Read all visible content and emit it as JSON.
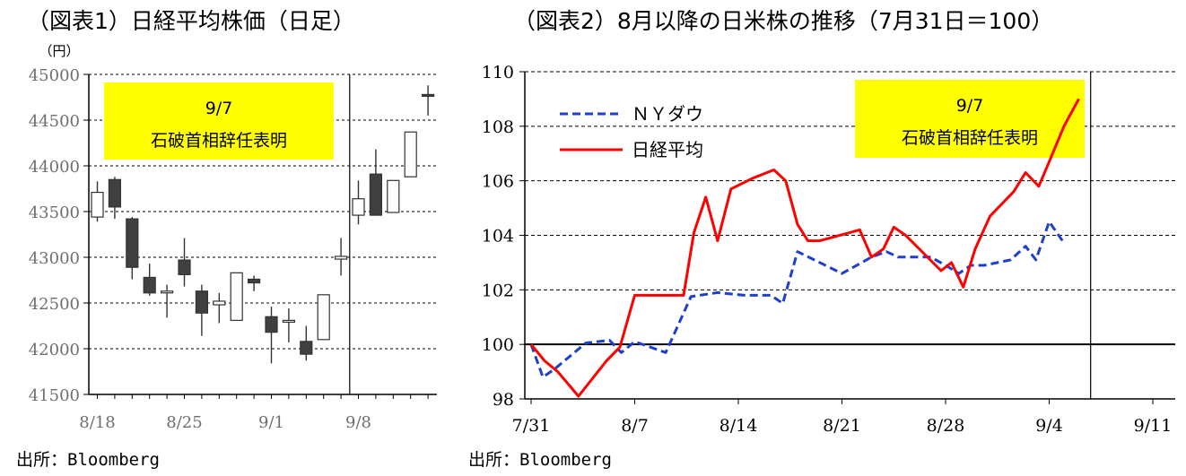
{
  "titles": {
    "chart1": "（図表1）日経平均株価（日足）",
    "chart2": "（図表2）8月以降の日米株の推移（7月31日＝100）"
  },
  "sources": {
    "chart1": "出所：Bloomberg",
    "chart2": "出所：Bloomberg"
  },
  "chart_data": [
    {
      "type": "candlestick",
      "title": "（図表1）日経平均株価（日足）",
      "unit_label": "（円）",
      "ylim": [
        41500,
        45000
      ],
      "yticks": [
        41500,
        42000,
        42500,
        43000,
        43500,
        44000,
        44500,
        45000
      ],
      "xtick_labels": [
        "8/18",
        "8/25",
        "9/1",
        "9/8"
      ],
      "xtick_index": [
        0,
        5,
        10,
        15
      ],
      "grid": true,
      "annotation": {
        "line1": "9/7",
        "line2": "石破首相辞任表明",
        "color": "#ffff00",
        "marker_after_index": 14
      },
      "candles": [
        {
          "date": "8/18",
          "open": 43440,
          "close": 43710,
          "high": 43830,
          "low": 43390
        },
        {
          "date": "8/19",
          "open": 43850,
          "close": 43550,
          "high": 43880,
          "low": 43420
        },
        {
          "date": "8/20",
          "open": 43420,
          "close": 42890,
          "high": 43440,
          "low": 42760
        },
        {
          "date": "8/21",
          "open": 42780,
          "close": 42610,
          "high": 42930,
          "low": 42580
        },
        {
          "date": "8/22",
          "open": 42620,
          "close": 42630,
          "high": 42700,
          "low": 42340
        },
        {
          "date": "8/25",
          "open": 42970,
          "close": 42810,
          "high": 43210,
          "low": 42680
        },
        {
          "date": "8/26",
          "open": 42630,
          "close": 42390,
          "high": 42700,
          "low": 42140
        },
        {
          "date": "8/27",
          "open": 42480,
          "close": 42520,
          "high": 42610,
          "low": 42280
        },
        {
          "date": "8/28",
          "open": 42310,
          "close": 42830,
          "high": 42830,
          "low": 42310
        },
        {
          "date": "8/29",
          "open": 42760,
          "close": 42720,
          "high": 42800,
          "low": 42630
        },
        {
          "date": "9/1",
          "open": 42350,
          "close": 42180,
          "high": 42460,
          "low": 41840
        },
        {
          "date": "9/2",
          "open": 42300,
          "close": 42310,
          "high": 42440,
          "low": 42070
        },
        {
          "date": "9/3",
          "open": 42080,
          "close": 41940,
          "high": 42250,
          "low": 41870
        },
        {
          "date": "9/4",
          "open": 42100,
          "close": 42590,
          "high": 42590,
          "low": 42100
        },
        {
          "date": "9/5",
          "open": 42980,
          "close": 43010,
          "high": 43210,
          "low": 42800
        },
        {
          "date": "9/8",
          "open": 43460,
          "close": 43640,
          "high": 43840,
          "low": 43360
        },
        {
          "date": "9/9",
          "open": 43910,
          "close": 43460,
          "high": 44180,
          "low": 43460
        },
        {
          "date": "9/10",
          "open": 43490,
          "close": 43840,
          "high": 43840,
          "low": 43490
        },
        {
          "date": "9/11",
          "open": 43880,
          "close": 44370,
          "high": 44370,
          "low": 43880
        },
        {
          "date": "9/12",
          "open": 44780,
          "close": 44770,
          "high": 44880,
          "low": 44550
        }
      ]
    },
    {
      "type": "line",
      "title": "（図表2）8月以降の日米株の推移（7月31日＝100）",
      "ylim": [
        98,
        110
      ],
      "yticks": [
        98,
        100,
        102,
        104,
        106,
        108,
        110
      ],
      "xlim": [
        0,
        62
      ],
      "xtick_labels": [
        "7/31",
        "8/7",
        "8/14",
        "8/21",
        "8/28",
        "9/4",
        "9/11"
      ],
      "xtick_values": [
        0,
        7,
        14,
        21,
        28,
        35,
        42
      ],
      "grid": true,
      "baseline": 100,
      "annotation": {
        "line1": "9/7",
        "line2": "石破首相辞任表明",
        "color": "#ffff00",
        "marker_x": 37.8
      },
      "series": [
        {
          "name": "ＮＹダウ",
          "color": "#1f3fd0",
          "dash": true,
          "points": [
            [
              0,
              100
            ],
            [
              0.8,
              98.8
            ],
            [
              1.6,
              99.1
            ],
            [
              3.7,
              100.05
            ],
            [
              5.3,
              100.15
            ],
            [
              6.1,
              99.7
            ],
            [
              7.0,
              100.1
            ],
            [
              9.1,
              99.7
            ],
            [
              10.8,
              101.75
            ],
            [
              12.6,
              101.9
            ],
            [
              14.4,
              101.8
            ],
            [
              16.2,
              101.8
            ],
            [
              17.0,
              101.5
            ],
            [
              18.0,
              103.4
            ],
            [
              21.0,
              102.6
            ],
            [
              23.0,
              103.2
            ],
            [
              24.0,
              103.4
            ],
            [
              24.8,
              103.2
            ],
            [
              27.0,
              103.2
            ],
            [
              28.0,
              102.9
            ],
            [
              28.9,
              102.6
            ],
            [
              29.7,
              102.9
            ],
            [
              30.6,
              102.9
            ],
            [
              32.4,
              103.1
            ],
            [
              33.4,
              103.6
            ],
            [
              34.1,
              103.1
            ],
            [
              35.0,
              104.5
            ],
            [
              35.9,
              103.8
            ]
          ]
        },
        {
          "name": "日経平均",
          "color": "#ff0000",
          "dash": false,
          "points": [
            [
              0,
              100
            ],
            [
              0.9,
              99.4
            ],
            [
              1.8,
              99.0
            ],
            [
              3.2,
              98.1
            ],
            [
              5.1,
              99.4
            ],
            [
              6.0,
              99.9
            ],
            [
              7.0,
              101.8
            ],
            [
              9.0,
              101.8
            ],
            [
              10.3,
              101.8
            ],
            [
              11.0,
              104.1
            ],
            [
              11.8,
              105.4
            ],
            [
              12.6,
              103.8
            ],
            [
              13.5,
              105.7
            ],
            [
              15.0,
              106.1
            ],
            [
              16.4,
              106.4
            ],
            [
              17.2,
              106.0
            ],
            [
              18.0,
              104.4
            ],
            [
              18.7,
              103.8
            ],
            [
              19.5,
              103.8
            ],
            [
              22.2,
              104.2
            ],
            [
              23.0,
              103.2
            ],
            [
              23.8,
              103.5
            ],
            [
              24.5,
              104.3
            ],
            [
              25.3,
              104.0
            ],
            [
              27.7,
              102.7
            ],
            [
              28.4,
              103.0
            ],
            [
              29.2,
              102.1
            ],
            [
              30.0,
              103.5
            ],
            [
              31.0,
              104.7
            ],
            [
              32.6,
              105.6
            ],
            [
              33.4,
              106.3
            ],
            [
              34.3,
              105.8
            ],
            [
              35.0,
              106.7
            ],
            [
              36.0,
              108.0
            ],
            [
              37.0,
              109.0
            ]
          ]
        }
      ]
    }
  ]
}
